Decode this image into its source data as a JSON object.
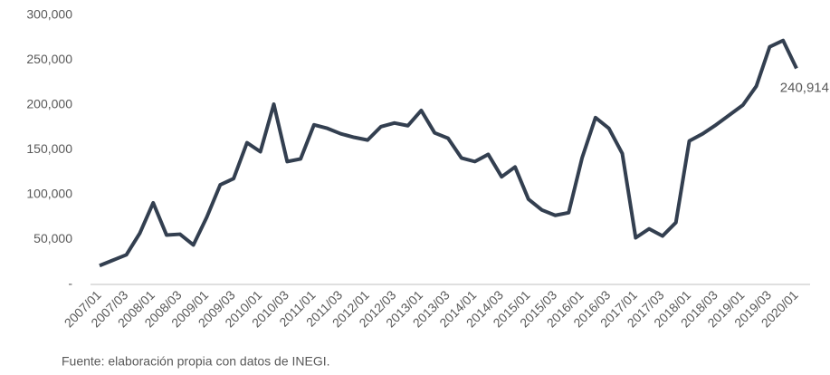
{
  "chart_data": {
    "type": "line",
    "categories": [
      "2007/01",
      null,
      "2007/03",
      null,
      "2008/01",
      null,
      "2008/03",
      null,
      "2009/01",
      null,
      "2009/03",
      null,
      "2010/01",
      null,
      "2010/03",
      null,
      "2011/01",
      null,
      "2011/03",
      null,
      "2012/01",
      null,
      "2012/03",
      null,
      "2013/01",
      null,
      "2013/03",
      null,
      "2014/01",
      null,
      "2014/03",
      null,
      "2015/01",
      null,
      "2015/03",
      null,
      "2016/01",
      null,
      "2016/03",
      null,
      "2017/01",
      null,
      "2017/03",
      null,
      "2018/01",
      null,
      "2018/03",
      null,
      "2019/01",
      null,
      "2019/03",
      null,
      "2020/01"
    ],
    "series": [
      {
        "color": "#333f50",
        "values": [
          21000,
          27000,
          33000,
          57000,
          91000,
          55000,
          56000,
          44000,
          75000,
          111000,
          118000,
          158000,
          148000,
          201000,
          137000,
          140000,
          178000,
          174000,
          168000,
          164000,
          161000,
          176000,
          180000,
          177000,
          194000,
          169000,
          163000,
          141000,
          137000,
          145000,
          120000,
          131000,
          95000,
          83000,
          77000,
          80000,
          141000,
          186000,
          174000,
          146000,
          52000,
          62000,
          54000,
          69000,
          160000,
          168000,
          178000,
          189000,
          200000,
          221000,
          265000,
          272000,
          240914
        ]
      }
    ],
    "value_labels": [
      null,
      null,
      null,
      null,
      null,
      null,
      null,
      null,
      null,
      null,
      null,
      null,
      null,
      null,
      null,
      null,
      null,
      null,
      null,
      null,
      null,
      null,
      null,
      null,
      null,
      null,
      null,
      null,
      null,
      null,
      null,
      null,
      null,
      null,
      null,
      null,
      null,
      null,
      null,
      null,
      null,
      null,
      null,
      null,
      null,
      null,
      null,
      null,
      null,
      null,
      null,
      null,
      "240,914"
    ],
    "ylim": [
      0,
      300000
    ],
    "yticks": [
      {
        "value": 0,
        "label": "-"
      },
      {
        "value": 50000,
        "label": "50,000"
      },
      {
        "value": 100000,
        "label": "100,000"
      },
      {
        "value": 150000,
        "label": "150,000"
      },
      {
        "value": 200000,
        "label": "200,000"
      },
      {
        "value": 250000,
        "label": "250,000"
      },
      {
        "value": 300000,
        "label": "300,000"
      }
    ],
    "grid": false,
    "source": "Fuente: elaboración propia con datos de INEGI."
  }
}
